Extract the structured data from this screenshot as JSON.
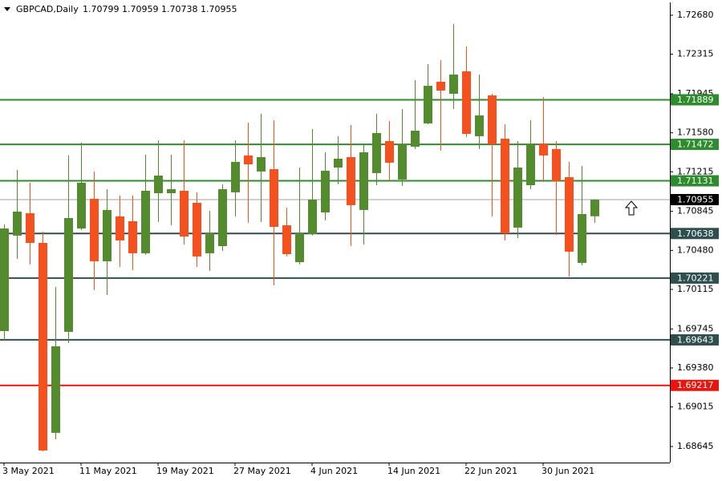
{
  "chart_data": {
    "type": "candlestick",
    "title": "GBPCAD,Daily",
    "header_ohlc": [
      1.70799,
      1.70959,
      1.70738,
      1.70955
    ],
    "categories": [
      "3 May 2021",
      null,
      null,
      null,
      null,
      null,
      "11 May 2021",
      null,
      null,
      null,
      null,
      null,
      "19 May 2021",
      null,
      null,
      null,
      null,
      null,
      "27 May 2021",
      null,
      null,
      null,
      null,
      null,
      "4 Jun 2021",
      null,
      null,
      null,
      null,
      null,
      "14 Jun 2021",
      null,
      null,
      null,
      null,
      null,
      "22 Jun 2021",
      null,
      null,
      null,
      null,
      null,
      "30 Jun 2021",
      null,
      null,
      null,
      null
    ],
    "open": [
      1.69725,
      1.70618,
      1.70828,
      1.7055,
      1.68773,
      1.69718,
      1.70685,
      1.70963,
      1.70378,
      1.70798,
      1.70753,
      1.70453,
      1.71015,
      1.71015,
      1.71038,
      1.70925,
      1.70453,
      1.7052,
      1.71023,
      1.71368,
      1.71218,
      1.7124,
      1.70715,
      1.7037,
      1.70633,
      1.70835,
      1.71255,
      1.71353,
      1.70858,
      1.71203,
      1.71503,
      1.71143,
      1.7145,
      1.71668,
      1.72058,
      1.71945,
      1.72155,
      1.71548,
      1.7193,
      1.71525,
      1.70693,
      1.7109,
      1.7148,
      1.71428,
      1.71165,
      1.70363,
      1.70799
    ],
    "high": [
      1.70723,
      1.71233,
      1.71113,
      1.70655,
      1.70138,
      1.71368,
      1.71488,
      1.71218,
      1.71053,
      1.70993,
      1.70993,
      1.71375,
      1.7151,
      1.71375,
      1.7151,
      1.71023,
      1.7085,
      1.71098,
      1.7151,
      1.71675,
      1.71758,
      1.71698,
      1.7088,
      1.71255,
      1.71615,
      1.71398,
      1.71548,
      1.71653,
      1.7148,
      1.71758,
      1.7169,
      1.71803,
      1.72073,
      1.72223,
      1.7226,
      1.72598,
      1.72388,
      1.72125,
      1.71945,
      1.7166,
      1.71503,
      1.71698,
      1.71915,
      1.71503,
      1.71308,
      1.7127,
      1.70959
    ],
    "low": [
      1.69635,
      1.704,
      1.70348,
      1.686,
      1.68713,
      1.69613,
      1.7067,
      1.70108,
      1.70063,
      1.70325,
      1.70295,
      1.70438,
      1.70745,
      1.70715,
      1.70535,
      1.70325,
      1.70288,
      1.70475,
      1.70798,
      1.70738,
      1.70745,
      1.70153,
      1.70423,
      1.70348,
      1.70618,
      1.7076,
      1.71098,
      1.7052,
      1.70535,
      1.7109,
      1.71128,
      1.71083,
      1.71428,
      1.7166,
      1.71413,
      1.71803,
      1.7154,
      1.71428,
      1.70798,
      1.70573,
      1.70595,
      1.71053,
      1.7112,
      1.70625,
      1.70235,
      1.7034,
      1.70738
    ],
    "close": [
      1.70685,
      1.70843,
      1.7055,
      1.68608,
      1.69583,
      1.70783,
      1.71113,
      1.70378,
      1.70858,
      1.70573,
      1.70453,
      1.71038,
      1.7118,
      1.71053,
      1.7061,
      1.70423,
      1.7064,
      1.71053,
      1.71308,
      1.71285,
      1.71353,
      1.707,
      1.70445,
      1.7064,
      1.70955,
      1.71225,
      1.71338,
      1.70903,
      1.71398,
      1.71578,
      1.713,
      1.71473,
      1.716,
      1.7202,
      1.71975,
      1.72125,
      1.7157,
      1.71743,
      1.71473,
      1.7064,
      1.71255,
      1.7148,
      1.71368,
      1.71128,
      1.70468,
      1.7082,
      1.70955
    ],
    "up_color": "#558b2f",
    "down_color": "#f4511e",
    "ylim": [
      1.68495,
      1.728
    ],
    "yticks": [
      {
        "value": 1.7268,
        "label": "1.72680"
      },
      1.72315,
      1.71945,
      {
        "value": 1.7158,
        "label": "1.71580"
      },
      1.71215,
      1.70845,
      {
        "value": 1.7048,
        "label": "1.70480"
      },
      1.70115,
      1.69745,
      {
        "value": 1.6938,
        "label": "1.69380"
      },
      1.69015,
      1.68645
    ],
    "levels": [
      {
        "value": 1.71889,
        "color": "#2e8b2e"
      },
      {
        "value": 1.71472,
        "color": "#2e8b2e"
      },
      {
        "value": 1.71131,
        "color": "#2e8b2e"
      },
      {
        "value": 1.70638,
        "color": "#2f4f4f"
      },
      {
        "value": 1.70221,
        "color": "#2f4f4f"
      },
      {
        "value": 1.69643,
        "color": "#2f4f4f"
      },
      {
        "value": 1.69217,
        "color": "#e8150f"
      }
    ],
    "current_price": 1.70955
  }
}
